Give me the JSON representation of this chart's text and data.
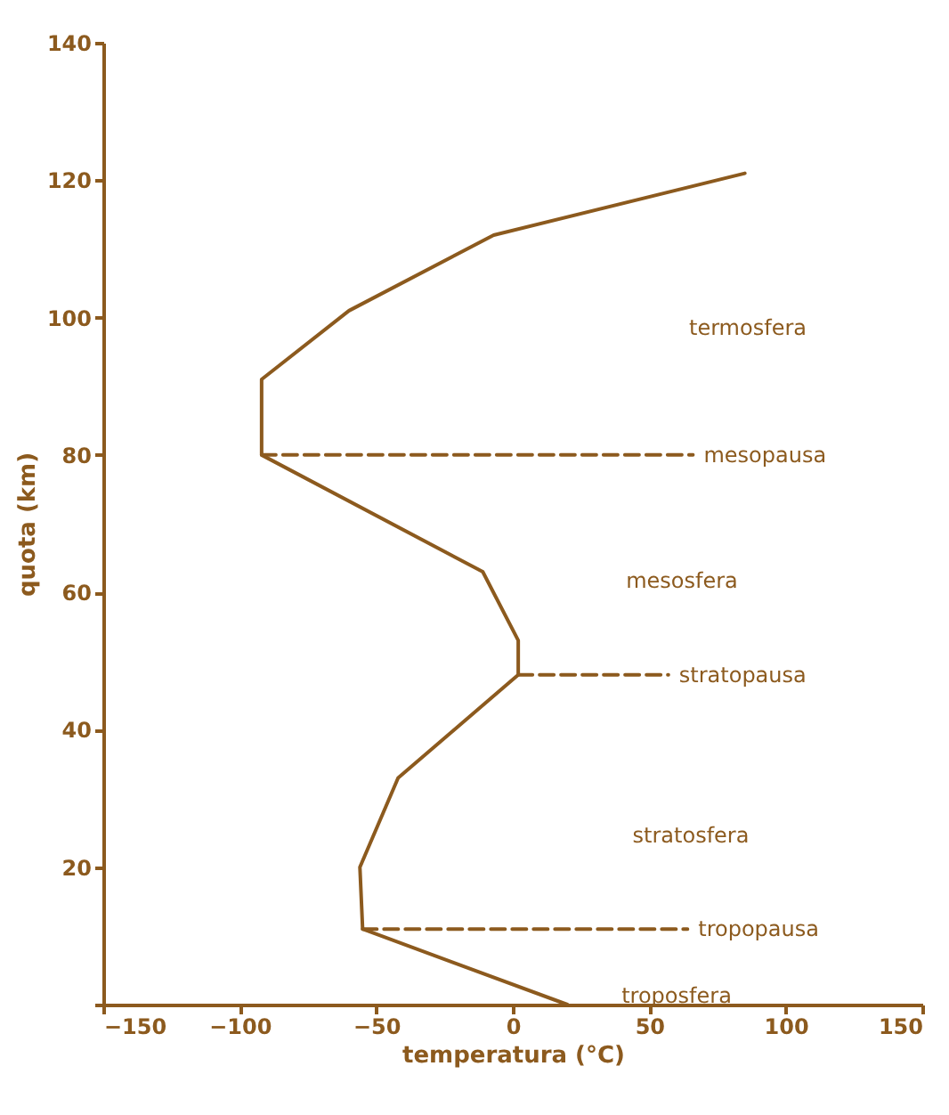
{
  "chart_data": {
    "type": "line",
    "xlabel": "temperatura (°C)",
    "ylabel": "quota (km)",
    "xlim": [
      -150,
      150
    ],
    "xticks": [
      -150,
      -100,
      -50,
      0,
      50,
      100,
      150
    ],
    "ylim": [
      0,
      140
    ],
    "yticks": [
      {
        "value": 0,
        "label": null
      },
      20,
      40,
      60,
      80,
      100,
      120,
      140
    ],
    "grid": false,
    "marker": "none",
    "series": [
      {
        "color": "#8c5a1e",
        "line_style": "solid",
        "x": [
          20,
          -55,
          -56,
          -42,
          2,
          2,
          -11,
          -92,
          -92,
          -60,
          -7,
          85
        ],
        "values": [
          0,
          11,
          20,
          33,
          48,
          53,
          63,
          80,
          91,
          101,
          112,
          121
        ]
      },
      {
        "name": "mesopausa",
        "color": "#8c5a1e",
        "line_style": "dashed",
        "x": [
          -92,
          66
        ],
        "values": [
          80,
          80
        ]
      },
      {
        "name": "stratopausa",
        "color": "#8c5a1e",
        "line_style": "dashed",
        "x": [
          2,
          57
        ],
        "values": [
          48,
          48
        ]
      },
      {
        "name": "tropopausa",
        "color": "#8c5a1e",
        "line_style": "dashed",
        "x": [
          -55,
          64
        ],
        "values": [
          11,
          11
        ]
      }
    ],
    "annotations": [
      "termosfera",
      "mesosfera",
      "stratosfera",
      "troposfera"
    ]
  }
}
